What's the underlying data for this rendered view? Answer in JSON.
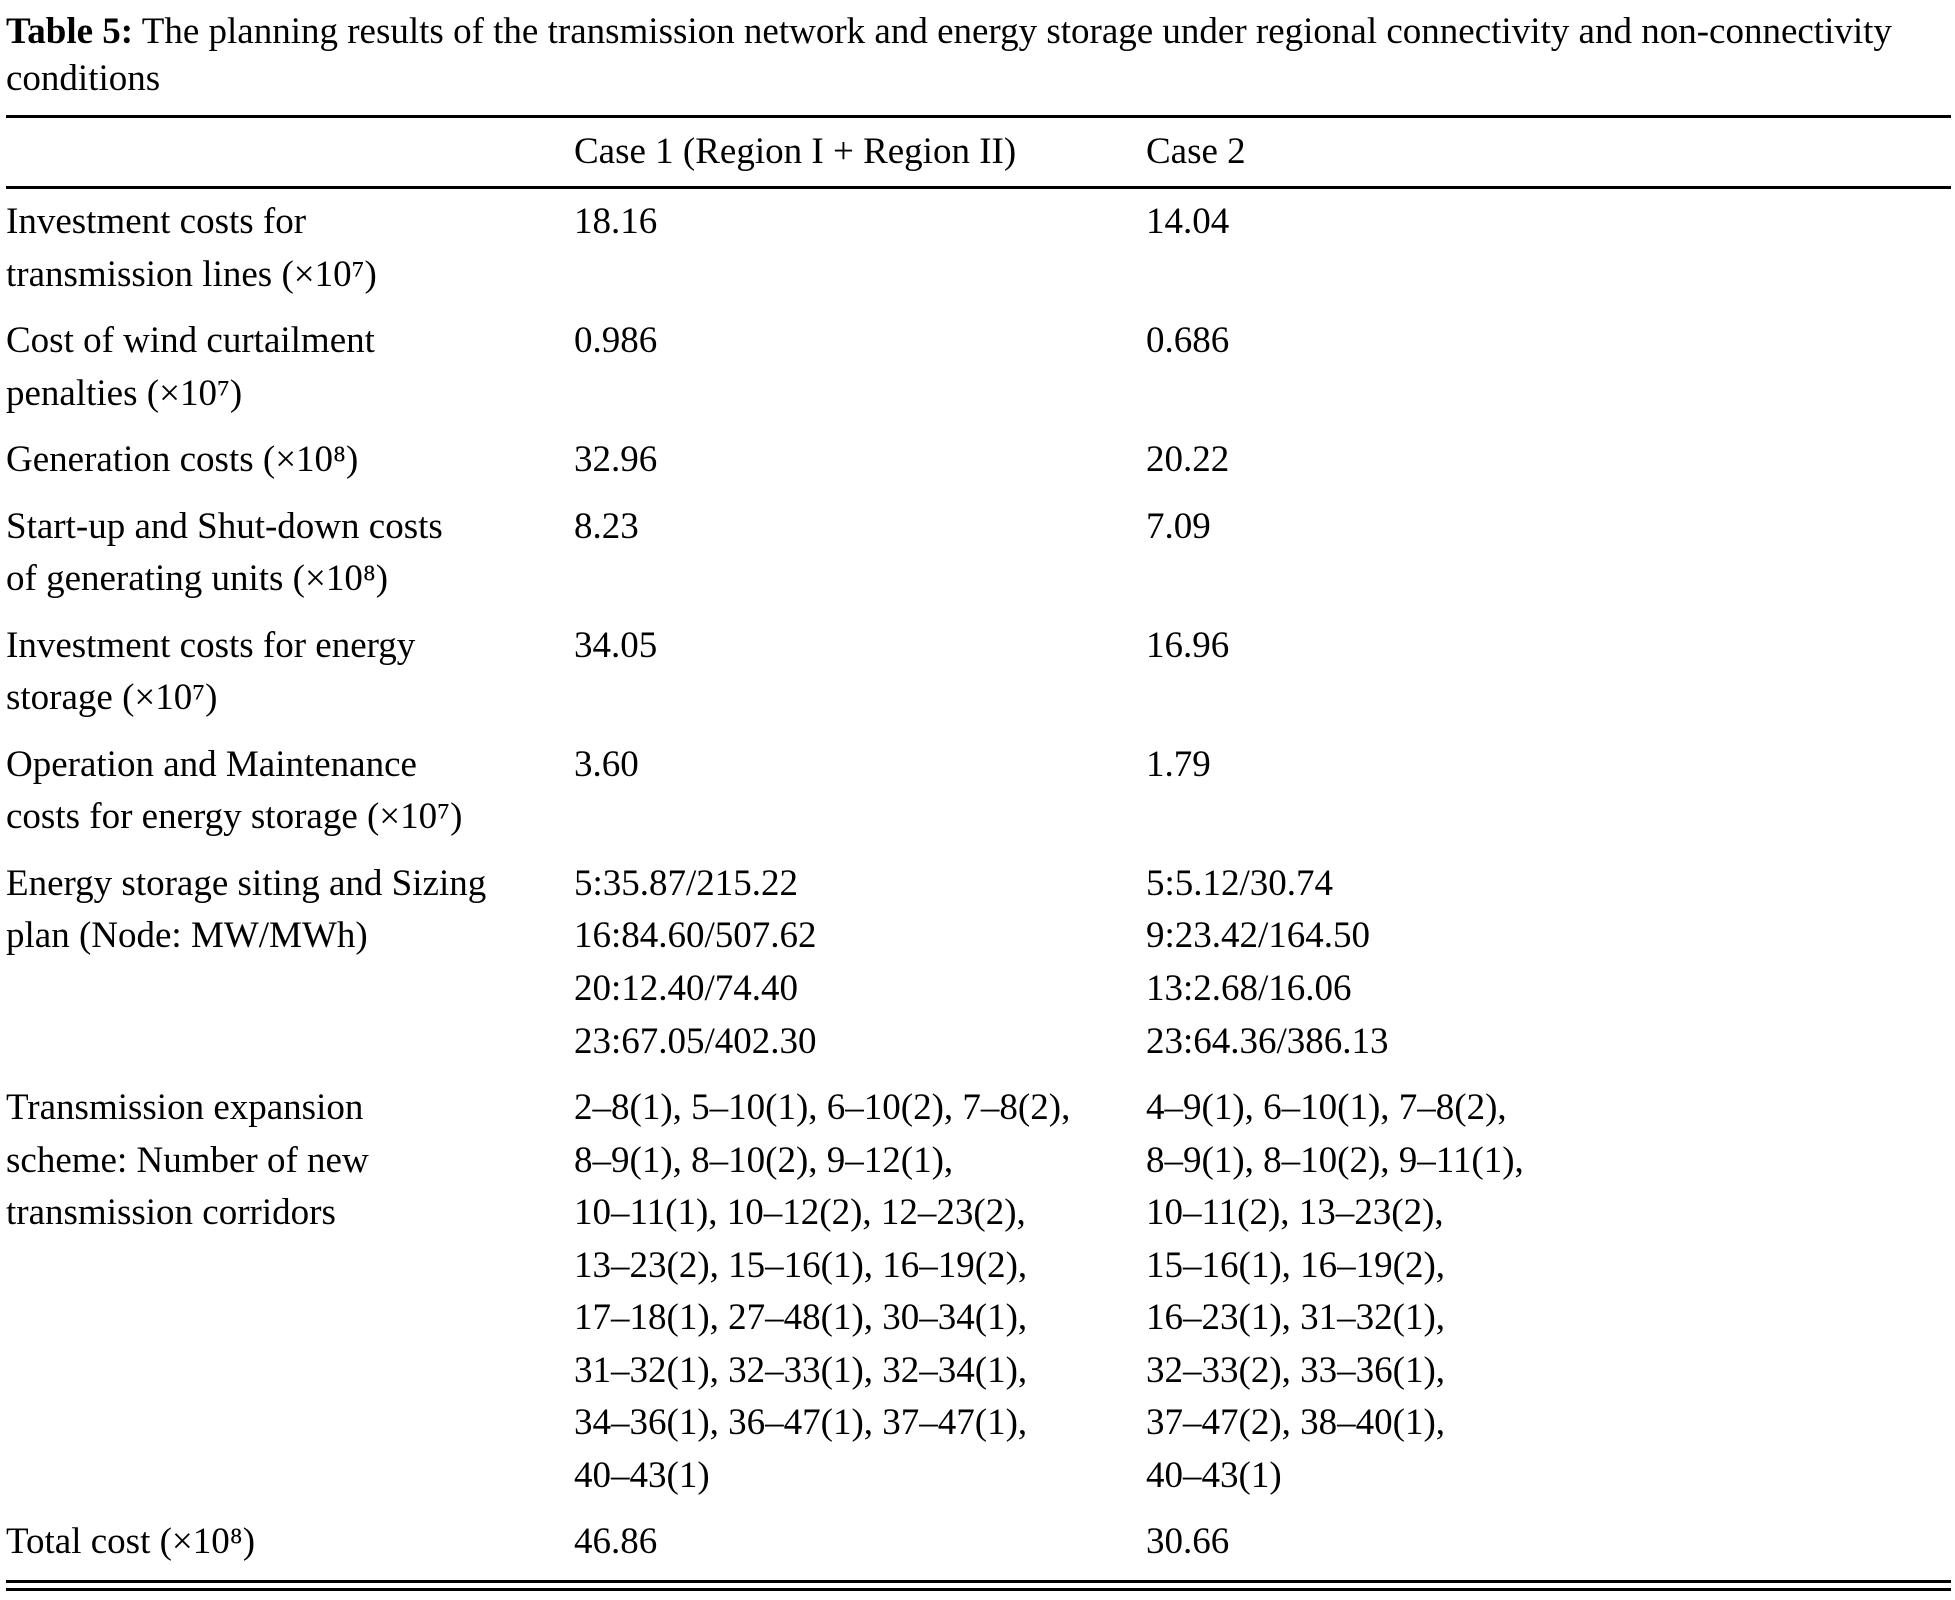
{
  "caption": {
    "label": "Table 5:",
    "text": " The planning results of the transmission network and energy storage under regional connectivity and non-connectivity conditions"
  },
  "header": {
    "label_col": "",
    "case1": "Case 1 (Region I + Region II)",
    "case2": "Case 2"
  },
  "rows": [
    {
      "label": [
        "Investment costs for",
        "transmission lines (×10⁷)"
      ],
      "case1": [
        "18.16"
      ],
      "case2": [
        "14.04"
      ]
    },
    {
      "label": [
        "Cost of wind curtailment",
        "penalties (×10⁷)"
      ],
      "case1": [
        "0.986"
      ],
      "case2": [
        "0.686"
      ]
    },
    {
      "label": [
        "Generation costs (×10⁸)"
      ],
      "case1": [
        "32.96"
      ],
      "case2": [
        "20.22"
      ]
    },
    {
      "label": [
        "Start-up and Shut-down costs",
        "of generating units (×10⁸)"
      ],
      "case1": [
        "8.23"
      ],
      "case2": [
        "7.09"
      ]
    },
    {
      "label": [
        "Investment costs for energy",
        "storage (×10⁷)"
      ],
      "case1": [
        "34.05"
      ],
      "case2": [
        "16.96"
      ]
    },
    {
      "label": [
        "Operation and Maintenance",
        "costs for energy storage (×10⁷)"
      ],
      "case1": [
        "3.60"
      ],
      "case2": [
        "1.79"
      ]
    },
    {
      "label": [
        "Energy storage siting and Sizing",
        "plan (Node: MW/MWh)"
      ],
      "case1": [
        "5:35.87/215.22",
        "16:84.60/507.62",
        "20:12.40/74.40",
        "23:67.05/402.30"
      ],
      "case2": [
        "5:5.12/30.74",
        "9:23.42/164.50",
        "13:2.68/16.06",
        "23:64.36/386.13"
      ]
    },
    {
      "label": [
        "Transmission expansion",
        "scheme: Number of new",
        "transmission corridors"
      ],
      "case1": [
        "2–8(1), 5–10(1), 6–10(2), 7–8(2),",
        "8–9(1), 8–10(2), 9–12(1),",
        "10–11(1), 10–12(2), 12–23(2),",
        "13–23(2), 15–16(1), 16–19(2),",
        "17–18(1), 27–48(1), 30–34(1),",
        "31–32(1), 32–33(1), 32–34(1),",
        "34–36(1), 36–47(1), 37–47(1),",
        "40–43(1)"
      ],
      "case2": [
        "4–9(1), 6–10(1), 7–8(2),",
        "8–9(1), 8–10(2), 9–11(1),",
        "10–11(2), 13–23(2),",
        "15–16(1), 16–19(2),",
        "16–23(1), 31–32(1),",
        "32–33(2), 33–36(1),",
        "37–47(2), 38–40(1),",
        "40–43(1)"
      ]
    },
    {
      "label": [
        "Total cost (×10⁸)"
      ],
      "case1": [
        "46.86"
      ],
      "case2": [
        "30.66"
      ]
    }
  ]
}
